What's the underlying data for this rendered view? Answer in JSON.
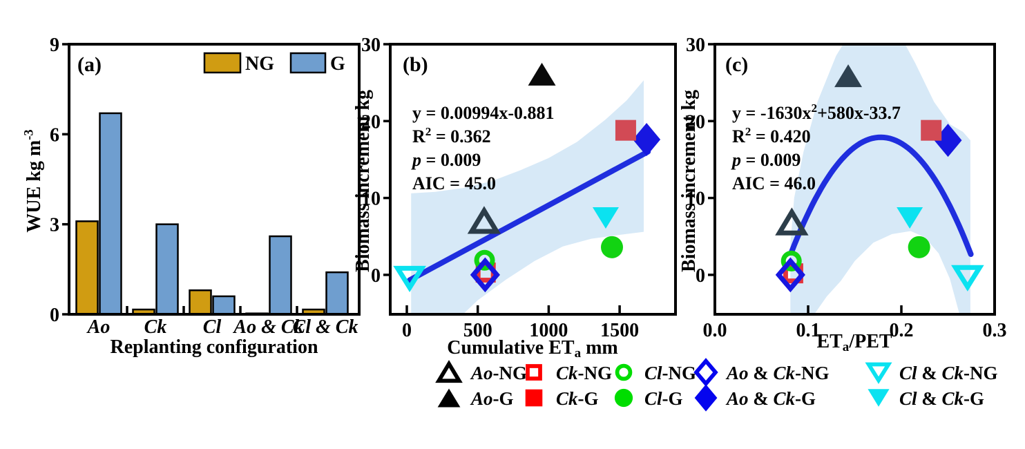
{
  "colors": {
    "background": "#ffffff",
    "axis": "#000000",
    "band": "#d7e9f7",
    "fit_line": "#1f2ede"
  },
  "markers": {
    "Ao-NG": {
      "shape": "tri-up",
      "mode": "open",
      "color": "#2c3d49"
    },
    "Ao-G": {
      "shape": "tri-up",
      "mode": "fill",
      "color": "#0a0a0a"
    },
    "Ck-NG": {
      "shape": "square",
      "mode": "open",
      "color": "#e3343c"
    },
    "Ck-G": {
      "shape": "square",
      "mode": "fill",
      "color": "#d24a55"
    },
    "Cl-NG": {
      "shape": "circle",
      "mode": "open",
      "color": "#12d312"
    },
    "Cl-G": {
      "shape": "circle",
      "mode": "fill",
      "color": "#12d312"
    },
    "AoCk-NG": {
      "shape": "diamond",
      "mode": "open",
      "color": "#1717e0"
    },
    "AoCk-G": {
      "shape": "diamond",
      "mode": "fill",
      "color": "#1717e0"
    },
    "ClCk-NG": {
      "shape": "tri-down",
      "mode": "open",
      "color": "#0be2f0"
    },
    "ClCk-G": {
      "shape": "tri-down",
      "mode": "fill",
      "color": "#0be2f0"
    }
  },
  "chart_data": [
    {
      "id": "a",
      "type": "bar",
      "label": "(a)",
      "xlabel": "Replanting configuration",
      "ylabel_parts": [
        {
          "t": "WUE kg m"
        },
        {
          "t": "-3",
          "s": "sup"
        }
      ],
      "categories": [
        "Ao",
        "Ck",
        "Cl",
        "Ao & Ck",
        "Cl & Ck"
      ],
      "ylim": [
        0,
        9
      ],
      "yticks": [
        0,
        3,
        6,
        9
      ],
      "ytick_labels": [
        "0",
        "3",
        "6",
        "9"
      ],
      "series": [
        {
          "name": "NG",
          "color": "#d09c12",
          "values": [
            3.1,
            0.16,
            0.8,
            0.03,
            0.16
          ]
        },
        {
          "name": "G",
          "color": "#6f9ecf",
          "values": [
            6.7,
            3.0,
            0.6,
            2.6,
            1.4
          ]
        }
      ]
    },
    {
      "id": "b",
      "type": "scatter",
      "label": "(b)",
      "xlabel_parts": [
        {
          "t": "Cumulative ET"
        },
        {
          "t": "a",
          "s": "sub"
        },
        {
          "t": " mm"
        }
      ],
      "ylabel": "Biomass increment kg",
      "xlim": [
        -117,
        1894
      ],
      "ylim": [
        -5.13,
        30
      ],
      "xticks": [
        0,
        500,
        1000,
        1500
      ],
      "xtick_labels": [
        "0",
        "500",
        "1000",
        "1500"
      ],
      "yticks": [
        0,
        10,
        20,
        30
      ],
      "ytick_labels": [
        "0",
        "10",
        "20",
        "30"
      ],
      "annotation": [
        [
          {
            "t": "y = 0.00994x-0.881"
          }
        ],
        [
          {
            "t": "R"
          },
          {
            "t": "2",
            "s": "sup"
          },
          {
            "t": " = 0.362"
          }
        ],
        [
          {
            "t": "p",
            "s": "i"
          },
          {
            "t": " = 0.009"
          }
        ],
        [
          {
            "t": "AIC = 45.0"
          }
        ]
      ],
      "fit": {
        "kind": "linear",
        "coeffs": [
          -0.881,
          0.00994
        ],
        "x_from": 20,
        "x_to": 1700
      },
      "band_poly": [
        [
          30,
          10.6
        ],
        [
          200,
          10.8
        ],
        [
          400,
          11.3
        ],
        [
          600,
          12.2
        ],
        [
          800,
          13.6
        ],
        [
          1000,
          15.2
        ],
        [
          1200,
          17.3
        ],
        [
          1400,
          20.2
        ],
        [
          1550,
          22.7
        ],
        [
          1670,
          25.3
        ],
        [
          1670,
          5.6
        ],
        [
          1500,
          5.2
        ],
        [
          1300,
          4.7
        ],
        [
          1100,
          3.7
        ],
        [
          900,
          1.8
        ],
        [
          700,
          -0.6
        ],
        [
          500,
          -3.3
        ],
        [
          380,
          -5.4
        ],
        [
          30,
          -5.4
        ]
      ],
      "points": [
        {
          "key": "ClCk-NG",
          "x": 20,
          "y": -0.4
        },
        {
          "key": "Ck-NG",
          "x": 556,
          "y": 0.3
        },
        {
          "key": "Cl-NG",
          "x": 548,
          "y": 1.9
        },
        {
          "key": "AoCk-NG",
          "x": 552,
          "y": 0.0
        },
        {
          "key": "Ao-NG",
          "x": 545,
          "y": 7.0
        },
        {
          "key": "Ao-G",
          "x": 952,
          "y": 26.1,
          "color": "#0a0a0a"
        },
        {
          "key": "ClCk-G",
          "x": 1402,
          "y": 7.4
        },
        {
          "key": "Cl-G",
          "x": 1446,
          "y": 3.6
        },
        {
          "key": "AoCk-G",
          "x": 1690,
          "y": 17.6
        },
        {
          "key": "Ck-G",
          "x": 1543,
          "y": 18.8
        }
      ]
    },
    {
      "id": "c",
      "type": "scatter",
      "label": "(c)",
      "xlabel_parts": [
        {
          "t": "ET"
        },
        {
          "t": "a",
          "s": "sub"
        },
        {
          "t": "/PET"
        }
      ],
      "ylabel": "Biomass increment kg",
      "xlim": [
        0,
        0.3
      ],
      "ylim": [
        -5.13,
        30
      ],
      "xticks": [
        0,
        0.1,
        0.2,
        0.3
      ],
      "xtick_labels": [
        "0.0",
        "0.1",
        "0.2",
        "0.3"
      ],
      "yticks": [
        0,
        10,
        20,
        30
      ],
      "ytick_labels": [
        "0",
        "10",
        "20",
        "30"
      ],
      "annotation": [
        [
          {
            "t": "y = -1630x"
          },
          {
            "t": "2",
            "s": "sup"
          },
          {
            "t": "+580x-33.7"
          }
        ],
        [
          {
            "t": "R"
          },
          {
            "t": "2",
            "s": "sup"
          },
          {
            "t": " = 0.420"
          }
        ],
        [
          {
            "t": "p",
            "s": "i"
          },
          {
            "t": " = 0.009"
          }
        ],
        [
          {
            "t": "AIC = 46.0"
          }
        ]
      ],
      "fit": {
        "kind": "quadratic",
        "coeffs": [
          -33.7,
          580,
          -1630
        ],
        "x_from": 0.082,
        "x_to": 0.2745
      },
      "band_poly": [
        [
          0.081,
          -5.4
        ],
        [
          0.081,
          4
        ],
        [
          0.085,
          10
        ],
        [
          0.095,
          16
        ],
        [
          0.11,
          22.5
        ],
        [
          0.13,
          28.5
        ],
        [
          0.15,
          32.5
        ],
        [
          0.175,
          34
        ],
        [
          0.195,
          32
        ],
        [
          0.215,
          27.5
        ],
        [
          0.235,
          22.5
        ],
        [
          0.252,
          19.6
        ],
        [
          0.266,
          18.6
        ],
        [
          0.274,
          17.5
        ],
        [
          0.274,
          -5.4
        ],
        [
          0.263,
          -5.4
        ],
        [
          0.252,
          -0.5
        ],
        [
          0.24,
          2.8
        ],
        [
          0.225,
          4.9
        ],
        [
          0.21,
          5.7
        ],
        [
          0.19,
          5.3
        ],
        [
          0.17,
          4.2
        ],
        [
          0.15,
          1.8
        ],
        [
          0.135,
          -0.8
        ],
        [
          0.12,
          -2.8
        ],
        [
          0.105,
          -5.4
        ]
      ],
      "points": [
        {
          "key": "Ck-NG",
          "x": 0.084,
          "y": 0.2
        },
        {
          "key": "Cl-NG",
          "x": 0.082,
          "y": 1.8
        },
        {
          "key": "AoCk-NG",
          "x": 0.081,
          "y": 0.0
        },
        {
          "key": "Ao-NG",
          "x": 0.0825,
          "y": 6.8
        },
        {
          "key": "Ao-G",
          "x": 0.143,
          "y": 25.9,
          "color": "#2e4150"
        },
        {
          "key": "ClCk-G",
          "x": 0.209,
          "y": 7.4
        },
        {
          "key": "Cl-G",
          "x": 0.219,
          "y": 3.6
        },
        {
          "key": "ClCk-NG",
          "x": 0.271,
          "y": -0.3
        },
        {
          "key": "AoCk-G",
          "x": 0.25,
          "y": 17.5
        },
        {
          "key": "Ck-G",
          "x": 0.232,
          "y": 18.8
        }
      ]
    }
  ],
  "bottom_legend": {
    "columns": [
      {
        "shape": "tri-up",
        "color": "#000000",
        "open_label": [
          {
            "t": "Ao",
            "s": "i"
          },
          {
            "t": "-NG"
          }
        ],
        "fill_label": [
          {
            "t": "Ao",
            "s": "i"
          },
          {
            "t": "-G"
          }
        ]
      },
      {
        "shape": "square",
        "color": "#ff0000",
        "open_label": [
          {
            "t": "Ck",
            "s": "i"
          },
          {
            "t": "-NG"
          }
        ],
        "fill_label": [
          {
            "t": "Ck",
            "s": "i"
          },
          {
            "t": "-G"
          }
        ]
      },
      {
        "shape": "circle",
        "color": "#00dd00",
        "open_label": [
          {
            "t": "Cl",
            "s": "i"
          },
          {
            "t": "-NG"
          }
        ],
        "fill_label": [
          {
            "t": "Cl",
            "s": "i"
          },
          {
            "t": "-G"
          }
        ]
      },
      {
        "shape": "diamond",
        "color": "#0505ee",
        "open_label": [
          {
            "t": "Ao",
            "s": "i"
          },
          {
            "t": " & "
          },
          {
            "t": "Ck",
            "s": "i"
          },
          {
            "t": "-NG"
          }
        ],
        "fill_label": [
          {
            "t": "Ao",
            "s": "i"
          },
          {
            "t": " & "
          },
          {
            "t": "Ck",
            "s": "i"
          },
          {
            "t": "-G"
          }
        ]
      },
      {
        "shape": "tri-down",
        "color": "#0be2f0",
        "open_label": [
          {
            "t": "Cl",
            "s": "i"
          },
          {
            "t": " & "
          },
          {
            "t": "Ck",
            "s": "i"
          },
          {
            "t": "-NG"
          }
        ],
        "fill_label": [
          {
            "t": "Cl",
            "s": "i"
          },
          {
            "t": " & "
          },
          {
            "t": "Ck",
            "s": "i"
          },
          {
            "t": "-G"
          }
        ]
      }
    ]
  }
}
